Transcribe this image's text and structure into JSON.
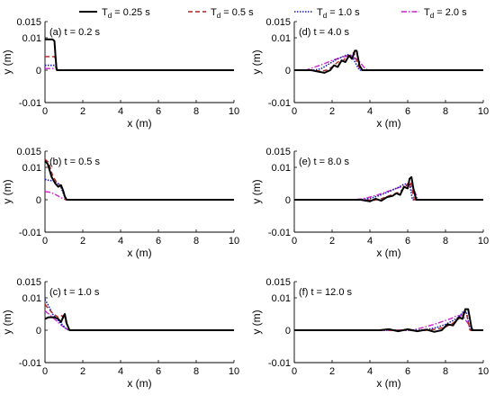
{
  "legend": [
    {
      "series": "Td=0.25",
      "base": "T",
      "sub": "d",
      "rest": " = 0.25 s",
      "color": "#000000",
      "dash": "",
      "width": 2.0
    },
    {
      "series": "Td=0.5",
      "base": "T",
      "sub": "d",
      "rest": " = 0.5 s",
      "color": "#b22222",
      "dash": "5,3",
      "width": 1.4
    },
    {
      "series": "Td=1.0",
      "base": "T",
      "sub": "d",
      "rest": " = 1.0 s",
      "color": "#1a1ab4",
      "dash": "1.5,1.5",
      "width": 1.6
    },
    {
      "series": "Td=2.0",
      "base": "T",
      "sub": "d",
      "rest": " = 2.0 s",
      "color": "#cc22cc",
      "dash": "6,2,1.5,2",
      "width": 1.4
    }
  ],
  "chart_data": [
    {
      "type": "line",
      "panel": "(a) t = 0.2 s",
      "xlabel": "x (m)",
      "ylabel": "y (m)",
      "xlim": [
        0,
        10
      ],
      "ylim": [
        -0.01,
        0.015
      ],
      "xticks": [
        "0",
        "2",
        "4",
        "6",
        "8",
        "10"
      ],
      "yticks": [
        "-0.01",
        "0",
        "0.01",
        "0.015"
      ],
      "series": [
        {
          "name": "T_d = 0.25 s",
          "x": [
            0,
            0.4,
            0.5,
            0.55,
            0.6,
            0.63,
            10
          ],
          "y": [
            0.0095,
            0.0095,
            0.009,
            0.005,
            0.001,
            0,
            0
          ]
        },
        {
          "name": "T_d = 0.5 s",
          "x": [
            0,
            0.5,
            0.56,
            0.62,
            0.66,
            10
          ],
          "y": [
            0.0042,
            0.0042,
            0.0035,
            0.001,
            0,
            0
          ]
        },
        {
          "name": "T_d = 1.0 s",
          "x": [
            0,
            0.5,
            0.6,
            0.66,
            10
          ],
          "y": [
            0.0015,
            0.0015,
            0.0008,
            0,
            0
          ]
        },
        {
          "name": "T_d = 2.0 s",
          "x": [
            0,
            0.5,
            0.62,
            0.68,
            10
          ],
          "y": [
            0.0005,
            0.0005,
            0.0003,
            0,
            0
          ]
        }
      ]
    },
    {
      "type": "line",
      "panel": "(b) t = 0.5 s",
      "xlabel": "x (m)",
      "ylabel": "y (m)",
      "xlim": [
        0,
        10
      ],
      "ylim": [
        -0.01,
        0.015
      ],
      "xticks": [
        "0",
        "2",
        "4",
        "6",
        "8",
        "10"
      ],
      "yticks": [
        "-0.01",
        "0",
        "0.01",
        "0.015"
      ],
      "series": [
        {
          "name": "T_d = 0.25 s",
          "x": [
            0,
            0.15,
            0.35,
            0.55,
            0.7,
            0.85,
            0.95,
            1.05,
            1.15,
            10
          ],
          "y": [
            0.012,
            0.011,
            0.007,
            0.005,
            0.004,
            0.0045,
            0.003,
            0.001,
            0,
            0
          ]
        },
        {
          "name": "T_d = 0.5 s",
          "x": [
            0,
            0.2,
            0.4,
            0.6,
            0.8,
            1.0,
            1.1,
            10
          ],
          "y": [
            0.0125,
            0.0115,
            0.0075,
            0.0055,
            0.0045,
            0.002,
            0,
            0
          ]
        },
        {
          "name": "T_d = 1.0 s",
          "x": [
            0,
            0.2,
            0.5,
            0.8,
            1.0,
            1.1,
            10
          ],
          "y": [
            0.0063,
            0.006,
            0.0058,
            0.0045,
            0.0015,
            0,
            0
          ]
        },
        {
          "name": "T_d = 2.0 s",
          "x": [
            0,
            0.2,
            0.5,
            0.8,
            1.0,
            1.1,
            10
          ],
          "y": [
            0.0025,
            0.0024,
            0.0018,
            0.0008,
            0.0002,
            0,
            0
          ]
        }
      ]
    },
    {
      "type": "line",
      "panel": "(c) t = 1.0 s",
      "xlabel": "x (m)",
      "ylabel": "y (m)",
      "xlim": [
        0,
        10
      ],
      "ylim": [
        -0.01,
        0.015
      ],
      "xticks": [
        "0",
        "2",
        "4",
        "6",
        "8",
        "10"
      ],
      "yticks": [
        "-0.01",
        "0",
        "0.01",
        "0.015"
      ],
      "series": [
        {
          "name": "T_d = 0.25 s",
          "x": [
            0,
            0.2,
            0.5,
            0.7,
            0.85,
            0.95,
            1.05,
            1.15,
            1.3,
            10
          ],
          "y": [
            0.0035,
            0.004,
            0.004,
            0.0035,
            0.0025,
            0.004,
            0.005,
            0.002,
            0,
            0
          ]
        },
        {
          "name": "T_d = 0.5 s",
          "x": [
            0,
            0.2,
            0.45,
            0.7,
            0.9,
            1.05,
            1.2,
            1.3,
            10
          ],
          "y": [
            0.008,
            0.0065,
            0.005,
            0.004,
            0.0045,
            0.0035,
            0.001,
            0,
            0
          ]
        },
        {
          "name": "T_d = 1.0 s",
          "x": [
            0,
            0.15,
            0.4,
            0.7,
            0.95,
            1.15,
            1.3,
            10
          ],
          "y": [
            0.0095,
            0.008,
            0.005,
            0.003,
            0.0015,
            0.0003,
            0,
            0
          ]
        },
        {
          "name": "T_d = 2.0 s",
          "x": [
            0,
            0.2,
            0.5,
            0.8,
            1.1,
            1.3,
            10
          ],
          "y": [
            0.006,
            0.005,
            0.0035,
            0.0018,
            0.0005,
            0,
            0
          ]
        }
      ]
    },
    {
      "type": "line",
      "panel": "(d) t = 4.0 s",
      "xlabel": "x (m)",
      "ylabel": "y (m)",
      "xlim": [
        0,
        10
      ],
      "ylim": [
        -0.01,
        0.015
      ],
      "xticks": [
        "0",
        "2",
        "4",
        "6",
        "8",
        "10"
      ],
      "yticks": [
        "-0.01",
        "0",
        "0.01",
        "0.015"
      ],
      "series": [
        {
          "name": "T_d = 0.25 s",
          "x": [
            0,
            0.9,
            1.3,
            1.6,
            1.9,
            2.1,
            2.3,
            2.5,
            2.7,
            2.9,
            3.05,
            3.2,
            3.3,
            3.45,
            3.6,
            10
          ],
          "y": [
            0,
            0,
            -0.0005,
            -0.0008,
            0,
            0.0015,
            0.001,
            0.003,
            0.0025,
            0.0045,
            0.0035,
            0.006,
            0.006,
            0.0015,
            0,
            0
          ]
        },
        {
          "name": "T_d = 0.5 s",
          "x": [
            0,
            1.0,
            1.4,
            1.7,
            2.0,
            2.3,
            2.6,
            2.8,
            3.0,
            3.15,
            3.35,
            3.5,
            10
          ],
          "y": [
            0,
            0,
            -0.0003,
            0,
            0.001,
            0.0025,
            0.003,
            0.0045,
            0.0045,
            0.0055,
            0.002,
            0,
            0
          ]
        },
        {
          "name": "T_d = 1.0 s",
          "x": [
            0,
            1.0,
            1.4,
            1.8,
            2.2,
            2.5,
            2.8,
            3.05,
            3.3,
            3.45,
            10
          ],
          "y": [
            0,
            0,
            0.0004,
            0.0018,
            0.0032,
            0.004,
            0.0048,
            0.0045,
            0.0015,
            0,
            0
          ]
        },
        {
          "name": "T_d = 2.0 s",
          "x": [
            0,
            0.6,
            1.0,
            1.5,
            2.0,
            2.5,
            3.0,
            3.4,
            3.7,
            3.9,
            10
          ],
          "y": [
            0,
            0,
            0.0008,
            0.0018,
            0.003,
            0.004,
            0.0045,
            0.003,
            0.0008,
            0,
            0
          ]
        }
      ]
    },
    {
      "type": "line",
      "panel": "(e) t = 8.0 s",
      "xlabel": "x (m)",
      "ylabel": "y (m)",
      "xlim": [
        0,
        10
      ],
      "ylim": [
        -0.01,
        0.015
      ],
      "xticks": [
        "0",
        "2",
        "4",
        "6",
        "8",
        "10"
      ],
      "yticks": [
        "-0.01",
        "0",
        "0.01",
        "0.015"
      ],
      "series": [
        {
          "name": "T_d = 0.25 s",
          "x": [
            0,
            3.5,
            4.0,
            4.3,
            4.6,
            4.9,
            5.2,
            5.4,
            5.6,
            5.8,
            6.0,
            6.1,
            6.2,
            6.3,
            6.45,
            10
          ],
          "y": [
            0,
            0,
            -0.0005,
            0.0003,
            -0.0003,
            0.0008,
            0.0012,
            0.002,
            0.0015,
            0.004,
            0.0035,
            0.0065,
            0.007,
            0.0035,
            0,
            0
          ]
        },
        {
          "name": "T_d = 0.5 s",
          "x": [
            0,
            3.8,
            4.2,
            4.6,
            5.0,
            5.3,
            5.6,
            5.8,
            6.0,
            6.15,
            6.35,
            10
          ],
          "y": [
            0,
            0,
            -0.0002,
            0.0003,
            0.0012,
            0.0018,
            0.0025,
            0.0035,
            0.005,
            0.0055,
            0,
            0
          ]
        },
        {
          "name": "T_d = 1.0 s",
          "x": [
            0,
            3.5,
            4.0,
            4.5,
            5.0,
            5.5,
            5.8,
            6.1,
            6.25,
            10
          ],
          "y": [
            0,
            0,
            0.0004,
            0.0013,
            0.0025,
            0.0038,
            0.0048,
            0.005,
            0,
            0
          ]
        },
        {
          "name": "T_d = 2.0 s",
          "x": [
            0,
            3.2,
            3.8,
            4.4,
            5.0,
            5.5,
            6.0,
            6.3,
            6.55,
            10
          ],
          "y": [
            0,
            0,
            0.0005,
            0.0015,
            0.0027,
            0.0037,
            0.0045,
            0.0035,
            0,
            0
          ]
        }
      ]
    },
    {
      "type": "line",
      "panel": "(f) t = 12.0 s",
      "xlabel": "x (m)",
      "ylabel": "y (m)",
      "xlim": [
        0,
        10
      ],
      "ylim": [
        -0.01,
        0.015
      ],
      "xticks": [
        "0",
        "2",
        "4",
        "6",
        "8",
        "10"
      ],
      "yticks": [
        "-0.01",
        "0",
        "0.01",
        "0.015"
      ],
      "series": [
        {
          "name": "T_d = 0.25 s",
          "x": [
            0,
            4.5,
            5.0,
            5.5,
            6.0,
            6.5,
            7.0,
            7.4,
            7.8,
            8.1,
            8.4,
            8.7,
            8.9,
            9.05,
            9.2,
            9.4,
            10
          ],
          "y": [
            0,
            0,
            0.0003,
            -0.0003,
            0.0003,
            -0.0003,
            0.0002,
            -0.0005,
            0,
            0.0018,
            0.0015,
            0.004,
            0.0035,
            0.0065,
            0.0065,
            0,
            0
          ]
        },
        {
          "name": "T_d = 0.5 s",
          "x": [
            0,
            6.0,
            6.5,
            7.0,
            7.5,
            8.0,
            8.4,
            8.7,
            8.9,
            9.1,
            9.3,
            10
          ],
          "y": [
            0,
            0,
            -0.0003,
            0,
            0.0003,
            0.001,
            0.0022,
            0.0035,
            0.005,
            0.0055,
            0,
            0
          ]
        },
        {
          "name": "T_d = 1.0 s",
          "x": [
            0,
            6.5,
            7.0,
            7.5,
            8.0,
            8.4,
            8.7,
            8.9,
            9.1,
            9.3,
            10
          ],
          "y": [
            0,
            0,
            0.0002,
            0.0008,
            0.0018,
            0.003,
            0.004,
            0.0055,
            0.0058,
            0,
            0
          ]
        },
        {
          "name": "T_d = 2.0 s",
          "x": [
            0,
            6.2,
            6.8,
            7.4,
            7.9,
            8.3,
            8.6,
            8.9,
            9.2,
            9.5,
            10
          ],
          "y": [
            0,
            0,
            0.0008,
            0.0018,
            0.0028,
            0.0036,
            0.0045,
            0.0045,
            0.002,
            0,
            0
          ]
        }
      ]
    }
  ]
}
